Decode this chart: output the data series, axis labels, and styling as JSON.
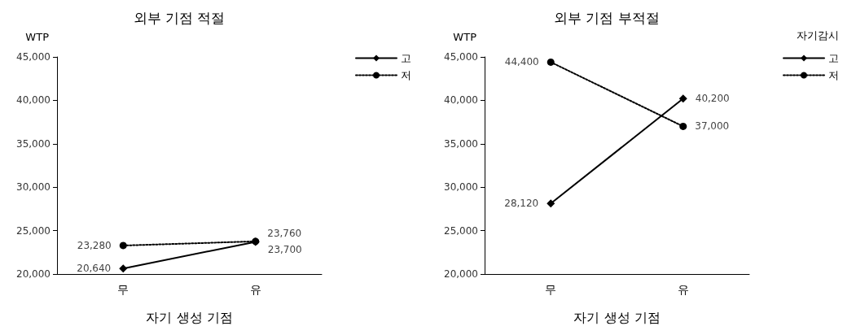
{
  "chart_data": [
    {
      "type": "line",
      "title": "외부 기점 적절",
      "ylabel": "WTP",
      "xlabel": "자기 생성 기점",
      "categories": [
        "무",
        "유"
      ],
      "series": [
        {
          "name": "고",
          "color": "#000000",
          "values": [
            20640,
            23700
          ],
          "value_labels": [
            "20,640",
            "23,700"
          ],
          "marker": "diamond",
          "line_style": "solid"
        },
        {
          "name": "저",
          "color": "#000000",
          "values": [
            23280,
            23760
          ],
          "value_labels": [
            "23,280",
            "23,760"
          ],
          "marker": "circle",
          "line_style": "dotted"
        }
      ],
      "ylim": [
        20000,
        45000
      ],
      "yticks": [
        {
          "value": 20000,
          "label": "20,000"
        },
        {
          "value": 25000,
          "label": "25,000"
        },
        {
          "value": 30000,
          "label": "30,000"
        },
        {
          "value": 35000,
          "label": "35,000"
        },
        {
          "value": 40000,
          "label": "40,000"
        },
        {
          "value": 45000,
          "label": "45,000"
        }
      ],
      "grid": false,
      "legend": "top right"
    },
    {
      "type": "line",
      "title": "외부 기점 부적절",
      "ylabel": "WTP",
      "xlabel": "자기 생성 기점",
      "legend_title": "자기감시",
      "categories": [
        "무",
        "유"
      ],
      "series": [
        {
          "name": "고",
          "color": "#000000",
          "values": [
            28120,
            40200
          ],
          "value_labels": [
            "28,120",
            "40,200"
          ],
          "marker": "diamond",
          "line_style": "solid"
        },
        {
          "name": "저",
          "color": "#000000",
          "values": [
            44400,
            37000
          ],
          "value_labels": [
            "44,400",
            "37,000"
          ],
          "marker": "circle",
          "line_style": "dotted"
        }
      ],
      "ylim": [
        20000,
        45000
      ],
      "yticks": [
        {
          "value": 20000,
          "label": "20,000"
        },
        {
          "value": 25000,
          "label": "25,000"
        },
        {
          "value": 30000,
          "label": "30,000"
        },
        {
          "value": 35000,
          "label": "35,000"
        },
        {
          "value": 40000,
          "label": "40,000"
        },
        {
          "value": 45000,
          "label": "45,000"
        }
      ],
      "grid": false,
      "legend": "top right"
    }
  ]
}
